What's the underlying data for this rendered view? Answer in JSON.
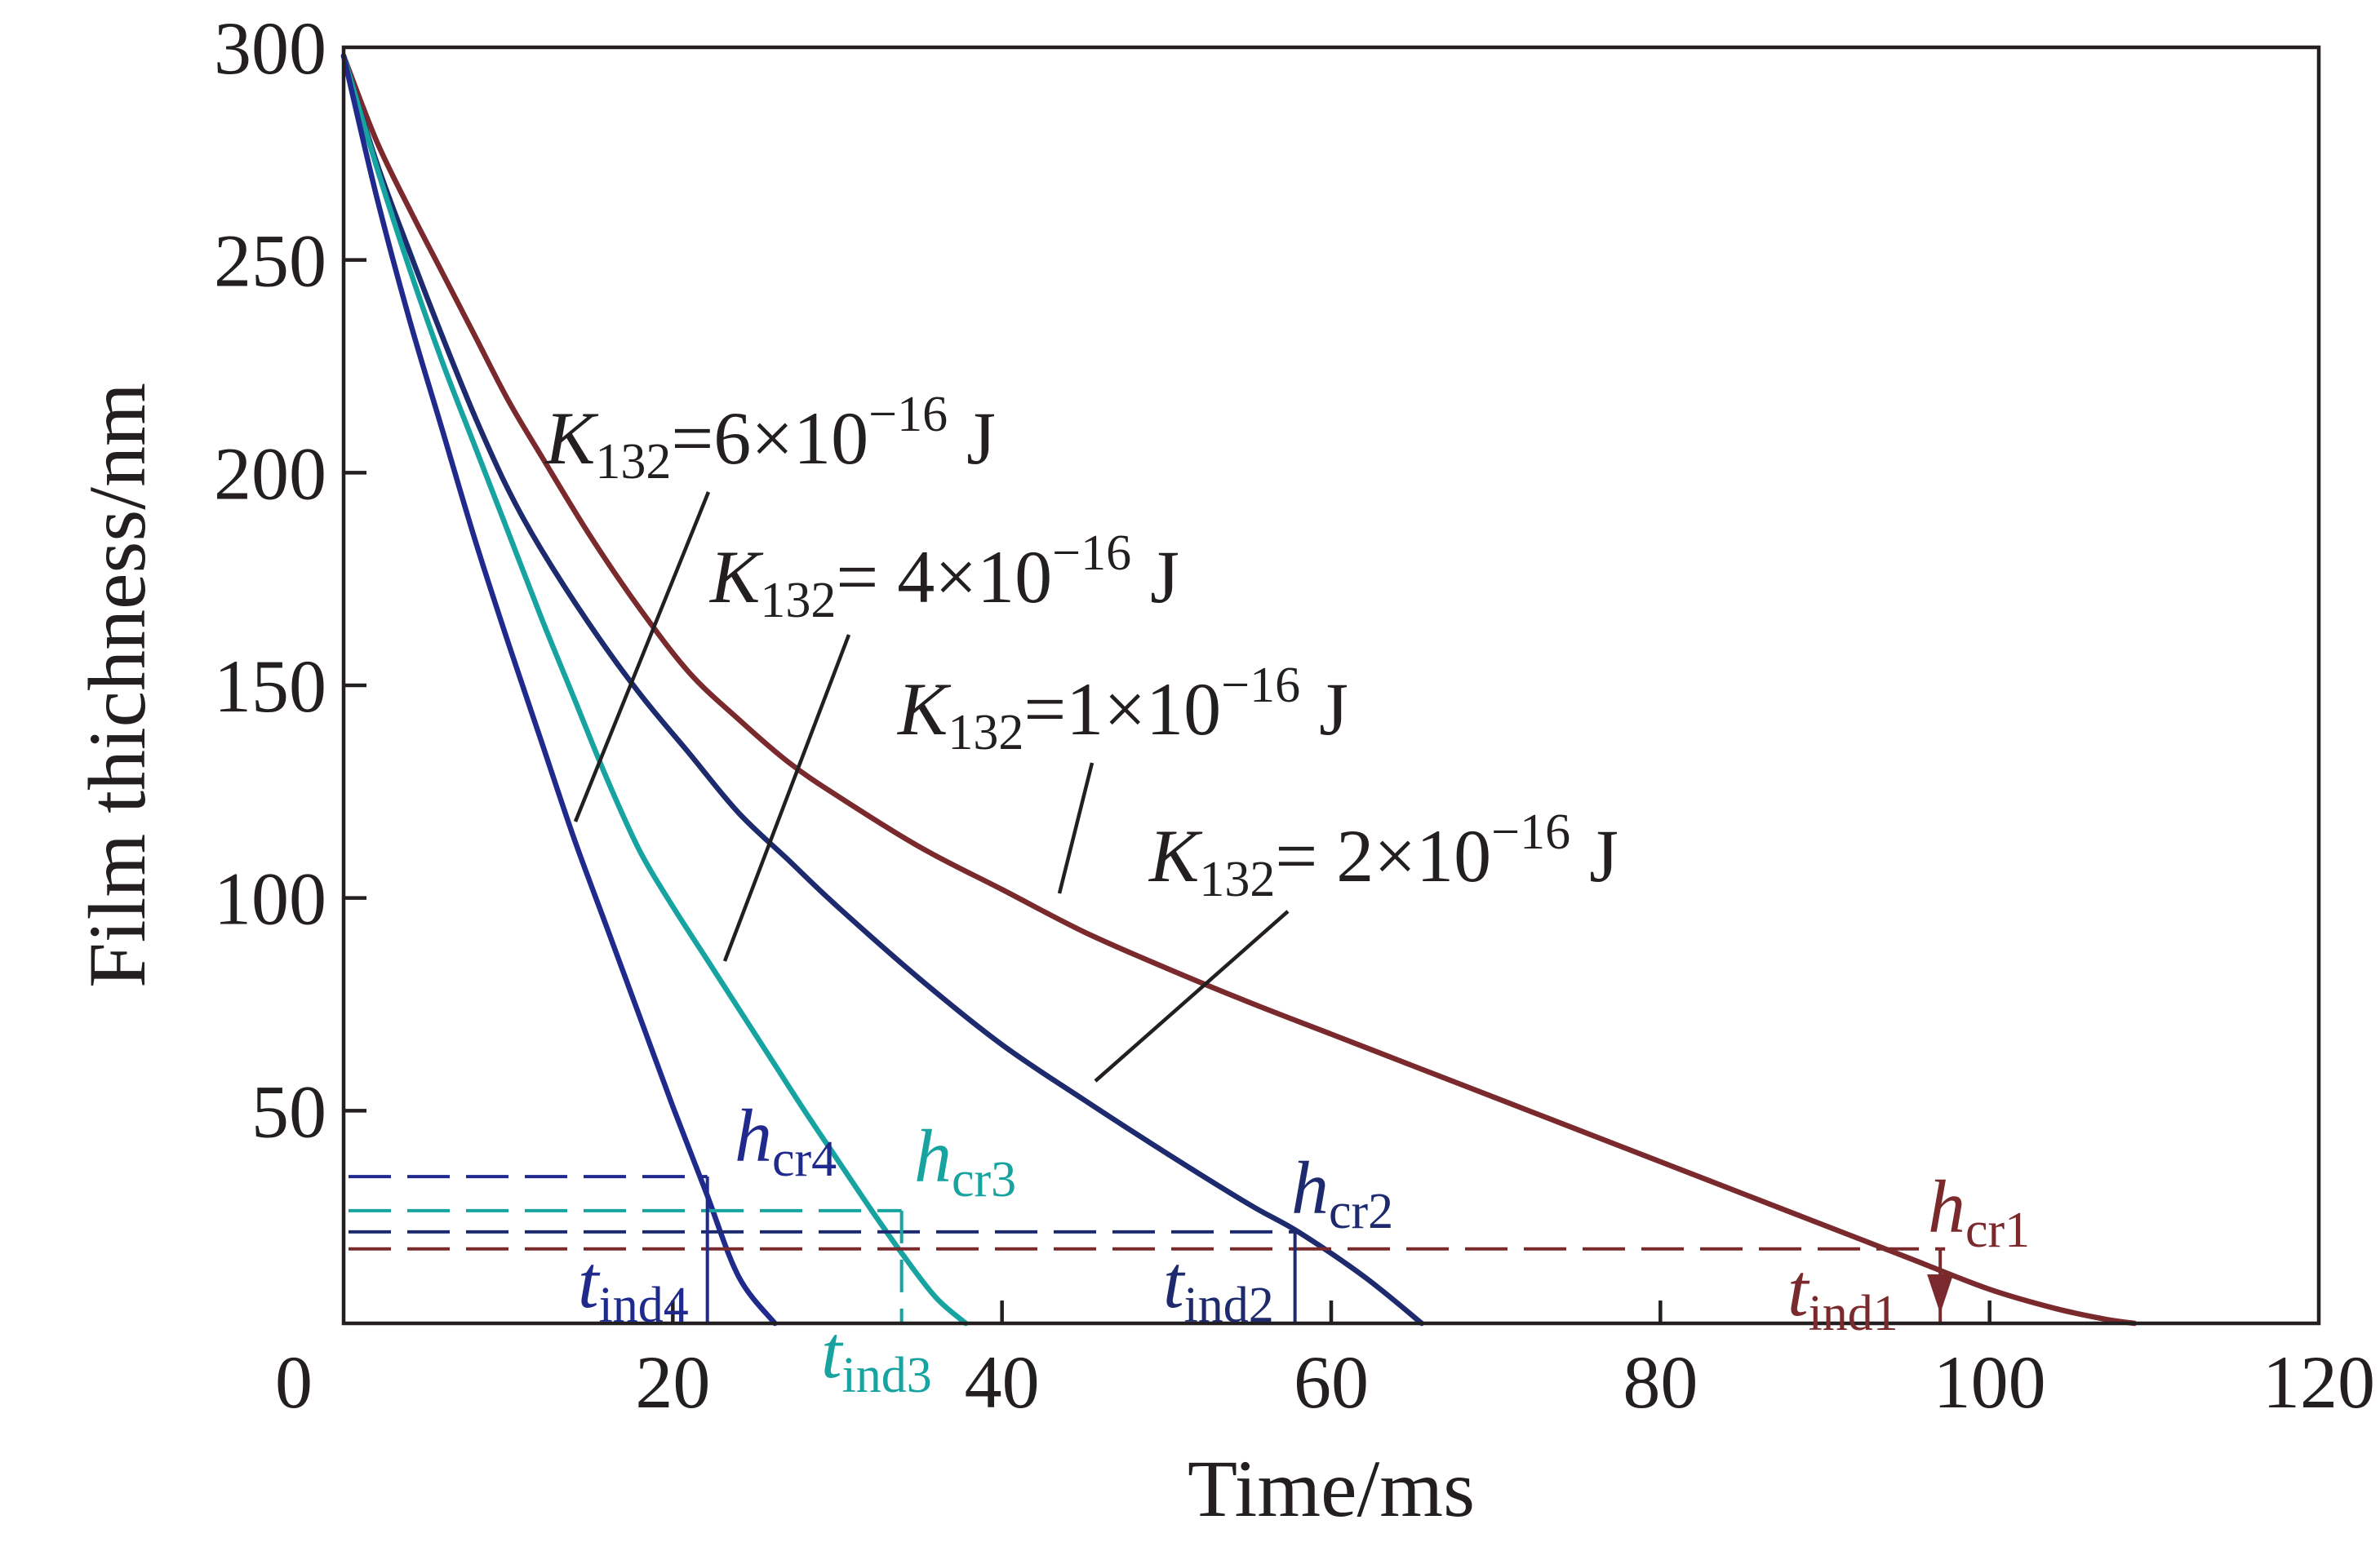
{
  "chart_data": {
    "type": "line",
    "xlabel": "Time/ms",
    "ylabel": "Film thichness/nm",
    "xlim": [
      0,
      120
    ],
    "ylim": [
      0,
      300
    ],
    "x_ticks": [
      0,
      20,
      40,
      60,
      80,
      100,
      120
    ],
    "y_ticks": [
      50,
      100,
      150,
      200,
      250,
      300
    ],
    "x_tick_labels": [
      "0",
      "20",
      "40",
      "60",
      "80",
      "100",
      "120"
    ],
    "y_tick_labels": [
      "50",
      "100",
      "150",
      "200",
      "250",
      "300"
    ],
    "grid": false,
    "series": [
      {
        "name": "K132=1×10^-16 J",
        "label_parts": {
          "sym": "K",
          "sub": "132",
          "mid": "=1×10",
          "sup": "−16",
          "end": " J"
        },
        "color": "#7a2a2c",
        "x": [
          0,
          2,
          4,
          6,
          8,
          10,
          12,
          15,
          18,
          21,
          24,
          27,
          30,
          35,
          40,
          45,
          50,
          55,
          60,
          65,
          70,
          75,
          80,
          85,
          90,
          95,
          100,
          104,
          107,
          108.8
        ],
        "y": [
          298,
          278,
          262,
          247,
          232,
          217,
          204,
          185,
          168,
          153,
          142,
          132,
          124,
          112,
          102,
          92,
          83.5,
          75.5,
          68,
          60.5,
          53,
          45.5,
          38,
          30.5,
          23,
          15.5,
          8,
          3.5,
          1,
          0
        ],
        "h_cr": {
          "label_h": "h",
          "label_sub": "cr1",
          "t": 97,
          "h": 17.5
        },
        "t_ind": {
          "label_t": "t",
          "label_sub": "ind1"
        }
      },
      {
        "name": "K132=2×10^-16 J",
        "label_parts": {
          "sym": "K",
          "sub": "132",
          "mid": "= 2×10",
          "sup": "−16",
          "end": " J"
        },
        "color": "#1e2a6e",
        "x": [
          0,
          2,
          4,
          6,
          8,
          10,
          12,
          15,
          18,
          21,
          24,
          27,
          30,
          35,
          40,
          45,
          50,
          55,
          58,
          62,
          65.5
        ],
        "y": [
          298,
          273,
          252,
          232,
          213,
          196,
          182,
          164,
          148,
          134,
          120,
          109,
          98,
          81,
          65.5,
          52.5,
          40,
          28,
          21.5,
          11,
          0
        ],
        "h_cr": {
          "label_h": "h",
          "label_sub": "cr2",
          "t": 57.8,
          "h": 21.5
        },
        "t_ind": {
          "label_t": "t",
          "label_sub": "ind2"
        }
      },
      {
        "name": "K132=4×10^-16 J",
        "label_parts": {
          "sym": "K",
          "sub": "132",
          "mid": "= 4×10",
          "sup": "−16",
          "end": " J"
        },
        "color": "#17a3a0",
        "x": [
          0,
          2,
          4,
          6,
          8,
          10,
          12,
          14,
          16,
          18,
          20,
          22,
          24,
          26,
          28,
          30,
          32,
          34,
          36,
          37.8
        ],
        "y": [
          298,
          272,
          248,
          226,
          206,
          186,
          166,
          147,
          128,
          111,
          98,
          86,
          74,
          62,
          50,
          38.5,
          27,
          16,
          6,
          0
        ],
        "h_cr": {
          "label_h": "h",
          "label_sub": "cr3",
          "t": 33.9,
          "h": 26.5
        },
        "t_ind": {
          "label_t": "t",
          "label_sub": "ind3"
        }
      },
      {
        "name": "K132=6×10^-16 J",
        "label_parts": {
          "sym": "K",
          "sub": "132",
          "mid": "=6×10",
          "sup": "−16",
          "end": " J"
        },
        "color": "#1f2a8c",
        "x": [
          0,
          2,
          4,
          6,
          8,
          10,
          12,
          14,
          16,
          18,
          20,
          22,
          24,
          26.2
        ],
        "y": [
          298,
          265,
          236,
          210,
          184,
          160,
          137,
          114,
          93,
          72,
          51,
          31,
          11,
          0
        ],
        "h_cr": {
          "label_h": "h",
          "label_sub": "cr4",
          "t": 22.1,
          "h": 34.5
        },
        "t_ind": {
          "label_t": "t",
          "label_sub": "ind4"
        }
      }
    ]
  }
}
